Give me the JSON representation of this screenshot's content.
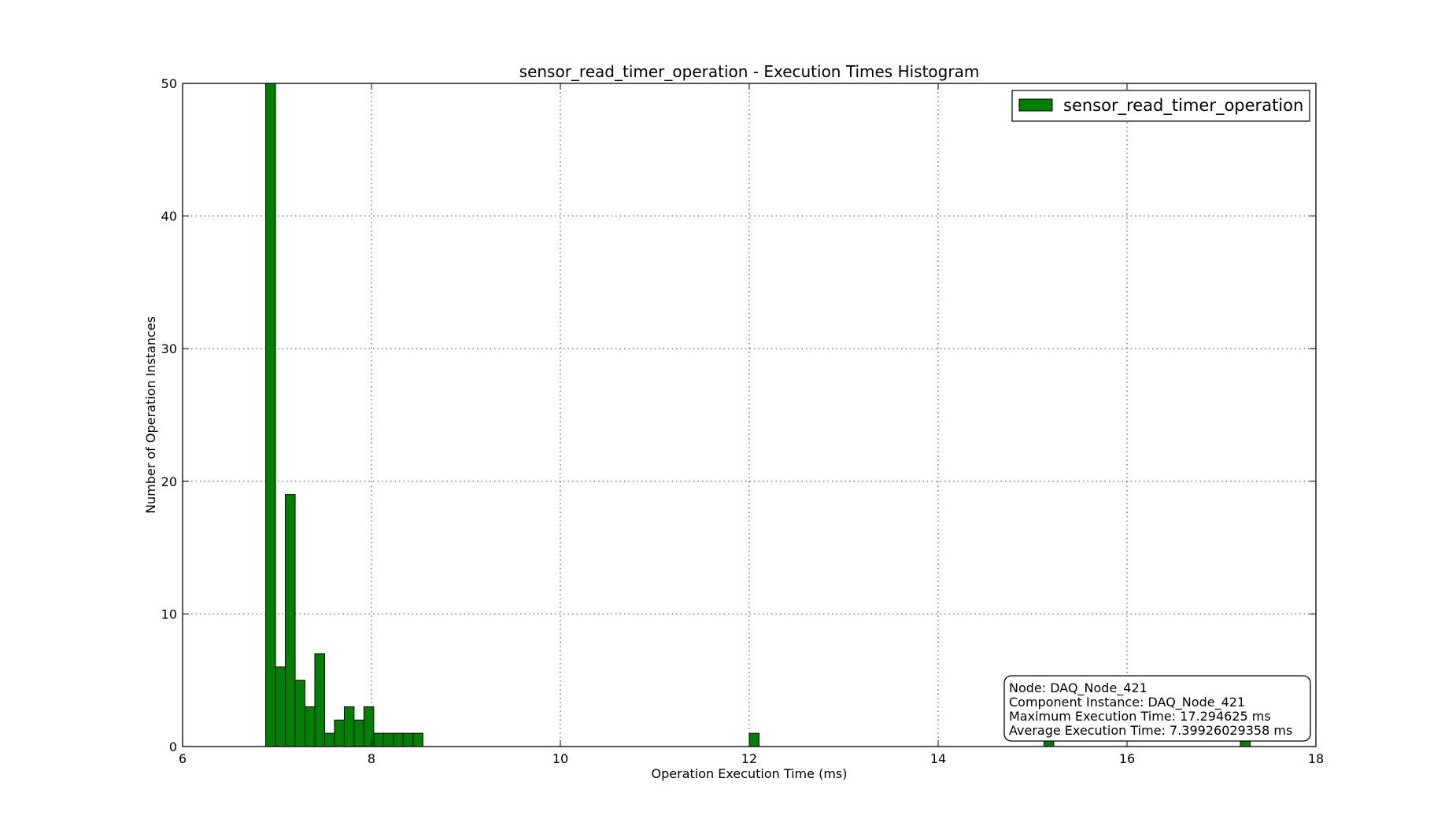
{
  "chart_data": {
    "type": "bar",
    "title": "sensor_read_timer_operation - Execution Times Histogram",
    "xlabel": "Operation Execution Time (ms)",
    "ylabel": "Number of Operation Instances",
    "xlim": [
      6,
      18
    ],
    "ylim": [
      0,
      50
    ],
    "x_ticks": [
      "6",
      "8",
      "10",
      "12",
      "14",
      "16",
      "18"
    ],
    "y_ticks": [
      "0",
      "10",
      "20",
      "30",
      "40",
      "50"
    ],
    "grid": true,
    "legend_position": "top-right",
    "bar_color": "#008000",
    "bin_width": 0.104,
    "series": [
      {
        "name": "sensor_read_timer_operation",
        "bins": [
          {
            "x": 6.88,
            "count": 50
          },
          {
            "x": 6.984,
            "count": 6
          },
          {
            "x": 7.088,
            "count": 19
          },
          {
            "x": 7.192,
            "count": 5
          },
          {
            "x": 7.296,
            "count": 3
          },
          {
            "x": 7.4,
            "count": 7
          },
          {
            "x": 7.504,
            "count": 1
          },
          {
            "x": 7.608,
            "count": 2
          },
          {
            "x": 7.712,
            "count": 3
          },
          {
            "x": 7.816,
            "count": 2
          },
          {
            "x": 7.92,
            "count": 3
          },
          {
            "x": 8.024,
            "count": 1
          },
          {
            "x": 8.128,
            "count": 1
          },
          {
            "x": 8.232,
            "count": 1
          },
          {
            "x": 8.336,
            "count": 1
          },
          {
            "x": 8.44,
            "count": 1
          },
          {
            "x": 12.0,
            "count": 1
          },
          {
            "x": 15.12,
            "count": 1
          },
          {
            "x": 17.2,
            "count": 1
          }
        ]
      }
    ],
    "annotation": {
      "position": "bottom-right",
      "lines": [
        "Node: DAQ_Node_421",
        "Component Instance: DAQ_Node_421",
        "Maximum Execution Time: 17.294625 ms",
        "Average Execution Time: 7.39926029358 ms"
      ]
    }
  }
}
